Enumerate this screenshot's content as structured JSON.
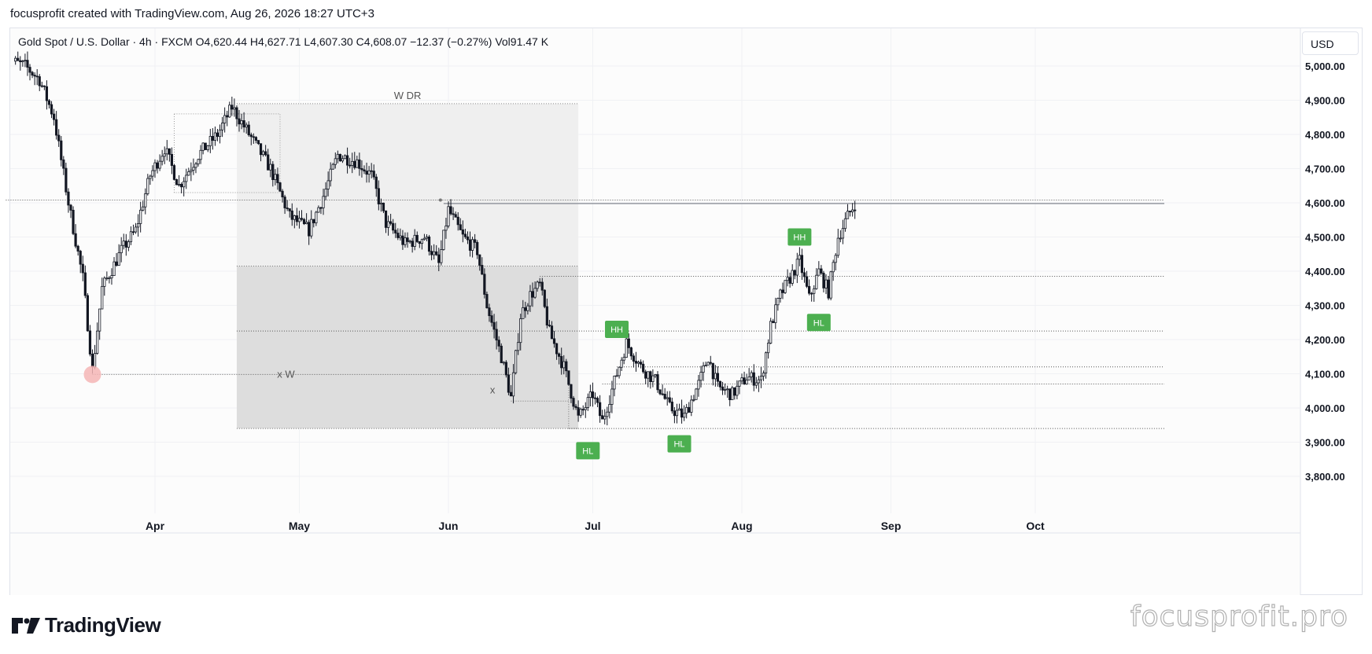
{
  "header": {
    "attribution": "focusprofit created with TradingView.com, Aug 26, 2026 18:27 UTC+3"
  },
  "legend": {
    "symbol": "Gold Spot / U.S. Dollar · 4h · FXCM",
    "open_label": "O",
    "open": "4,620.44",
    "high_label": "H",
    "high": "4,627.71",
    "low_label": "L",
    "low": "4,607.30",
    "close_label": "C",
    "close": "4,608.07",
    "change": "−12.37 (−0.27%)",
    "volume_label": "Vol",
    "volume": "91.47 K"
  },
  "currency_button": "USD",
  "logo_text": "TradingView",
  "watermark": "focusprofit.pro",
  "colors": {
    "label_green": "#4caf50",
    "zone_light": "#efefef",
    "zone_dark": "#dddddd",
    "candle": "#131722",
    "marker": "#f5b5b5"
  },
  "chart_data": {
    "type": "candlestick",
    "title": "",
    "ylim": [
      3700,
      5080
    ],
    "y_ticks": [
      "5,000.00",
      "4,900.00",
      "4,800.00",
      "4,700.00",
      "4,600.00",
      "4,500.00",
      "4,400.00",
      "4,300.00",
      "4,200.00",
      "4,100.00",
      "4,000.00",
      "3,900.00",
      "3,800.00"
    ],
    "x_ticks": [
      "Apr",
      "May",
      "Jun",
      "Jul",
      "Aug",
      "Sep",
      "Oct"
    ],
    "x_range": [
      "2026-03-01",
      "2026-10-31"
    ],
    "price_path": [
      {
        "date": "2026-03-01",
        "price": 5020
      },
      {
        "date": "2026-03-05",
        "price": 5000
      },
      {
        "date": "2026-03-08",
        "price": 4960
      },
      {
        "date": "2026-03-11",
        "price": 4850
      },
      {
        "date": "2026-03-14",
        "price": 4600
      },
      {
        "date": "2026-03-17",
        "price": 4380
      },
      {
        "date": "2026-03-19",
        "price": 4110
      },
      {
        "date": "2026-03-21",
        "price": 4350
      },
      {
        "date": "2026-03-25",
        "price": 4460
      },
      {
        "date": "2026-03-28",
        "price": 4520
      },
      {
        "date": "2026-03-31",
        "price": 4680
      },
      {
        "date": "2026-04-03",
        "price": 4760
      },
      {
        "date": "2026-04-06",
        "price": 4650
      },
      {
        "date": "2026-04-10",
        "price": 4740
      },
      {
        "date": "2026-04-14",
        "price": 4800
      },
      {
        "date": "2026-04-17",
        "price": 4880
      },
      {
        "date": "2026-04-21",
        "price": 4790
      },
      {
        "date": "2026-04-25",
        "price": 4700
      },
      {
        "date": "2026-04-29",
        "price": 4560
      },
      {
        "date": "2026-05-03",
        "price": 4520
      },
      {
        "date": "2026-05-06",
        "price": 4620
      },
      {
        "date": "2026-05-09",
        "price": 4740
      },
      {
        "date": "2026-05-13",
        "price": 4720
      },
      {
        "date": "2026-05-16",
        "price": 4680
      },
      {
        "date": "2026-05-19",
        "price": 4540
      },
      {
        "date": "2026-05-23",
        "price": 4480
      },
      {
        "date": "2026-05-27",
        "price": 4500
      },
      {
        "date": "2026-05-30",
        "price": 4420
      },
      {
        "date": "2026-06-01",
        "price": 4580
      },
      {
        "date": "2026-06-04",
        "price": 4500
      },
      {
        "date": "2026-06-07",
        "price": 4460
      },
      {
        "date": "2026-06-09",
        "price": 4300
      },
      {
        "date": "2026-06-12",
        "price": 4150
      },
      {
        "date": "2026-06-14",
        "price": 4030
      },
      {
        "date": "2026-06-16",
        "price": 4270
      },
      {
        "date": "2026-06-18",
        "price": 4330
      },
      {
        "date": "2026-06-20",
        "price": 4360
      },
      {
        "date": "2026-06-22",
        "price": 4220
      },
      {
        "date": "2026-06-25",
        "price": 4120
      },
      {
        "date": "2026-06-28",
        "price": 3970
      },
      {
        "date": "2026-07-01",
        "price": 4040
      },
      {
        "date": "2026-07-03",
        "price": 3960
      },
      {
        "date": "2026-07-06",
        "price": 4100
      },
      {
        "date": "2026-07-08",
        "price": 4190
      },
      {
        "date": "2026-07-11",
        "price": 4120
      },
      {
        "date": "2026-07-14",
        "price": 4080
      },
      {
        "date": "2026-07-17",
        "price": 4000
      },
      {
        "date": "2026-07-20",
        "price": 3975
      },
      {
        "date": "2026-07-23",
        "price": 4070
      },
      {
        "date": "2026-07-25",
        "price": 4150
      },
      {
        "date": "2026-07-27",
        "price": 4060
      },
      {
        "date": "2026-07-30",
        "price": 4040
      },
      {
        "date": "2026-08-02",
        "price": 4090
      },
      {
        "date": "2026-08-05",
        "price": 4080
      },
      {
        "date": "2026-08-07",
        "price": 4240
      },
      {
        "date": "2026-08-09",
        "price": 4330
      },
      {
        "date": "2026-08-11",
        "price": 4380
      },
      {
        "date": "2026-08-13",
        "price": 4430
      },
      {
        "date": "2026-08-15",
        "price": 4320
      },
      {
        "date": "2026-08-17",
        "price": 4400
      },
      {
        "date": "2026-08-19",
        "price": 4340
      },
      {
        "date": "2026-08-21",
        "price": 4500
      },
      {
        "date": "2026-08-23",
        "price": 4560
      },
      {
        "date": "2026-08-25",
        "price": 4610
      }
    ],
    "zones": [
      {
        "label": "W DR",
        "from": "2026-04-18",
        "to": "2026-06-28",
        "top": 4890,
        "bottom": 4415,
        "shade": "light"
      },
      {
        "label": "",
        "from": "2026-04-18",
        "to": "2026-06-28",
        "top": 4415,
        "bottom": 3940,
        "shade": "dark"
      },
      {
        "label": "",
        "from": "2026-04-05",
        "to": "2026-04-27",
        "top": 4860,
        "bottom": 4630,
        "shade": "box"
      },
      {
        "label": "x",
        "from": "2026-06-14",
        "to": "2026-06-26",
        "top": 4020,
        "bottom": 4020,
        "shade": "none"
      }
    ],
    "levels": [
      {
        "price": 4608,
        "from": "2026-03-01",
        "style": "dotted"
      },
      {
        "price": 4598,
        "from": "2026-05-31",
        "style": "solid"
      },
      {
        "price": 4385,
        "from": "2026-06-20",
        "style": "dotted"
      },
      {
        "price": 4225,
        "from": "2026-04-18",
        "style": "dotted"
      },
      {
        "price": 4120,
        "from": "2026-07-06",
        "style": "dotted"
      },
      {
        "price": 4070,
        "from": "2026-07-03",
        "style": "dotted"
      },
      {
        "price": 4098,
        "from": "2026-03-19",
        "to": "2026-06-14",
        "style": "dotted",
        "label": "x W"
      },
      {
        "price": 3940,
        "from": "2026-06-26",
        "style": "dotted"
      }
    ],
    "labels": [
      {
        "text": "HH",
        "date": "2026-07-06",
        "price": 4230
      },
      {
        "text": "HL",
        "date": "2026-06-30",
        "price": 3875
      },
      {
        "text": "HL",
        "date": "2026-07-19",
        "price": 3895
      },
      {
        "text": "HH",
        "date": "2026-08-13",
        "price": 4500
      },
      {
        "text": "HL",
        "date": "2026-08-17",
        "price": 4250
      }
    ],
    "marker": {
      "date": "2026-03-19",
      "price": 4098
    }
  }
}
